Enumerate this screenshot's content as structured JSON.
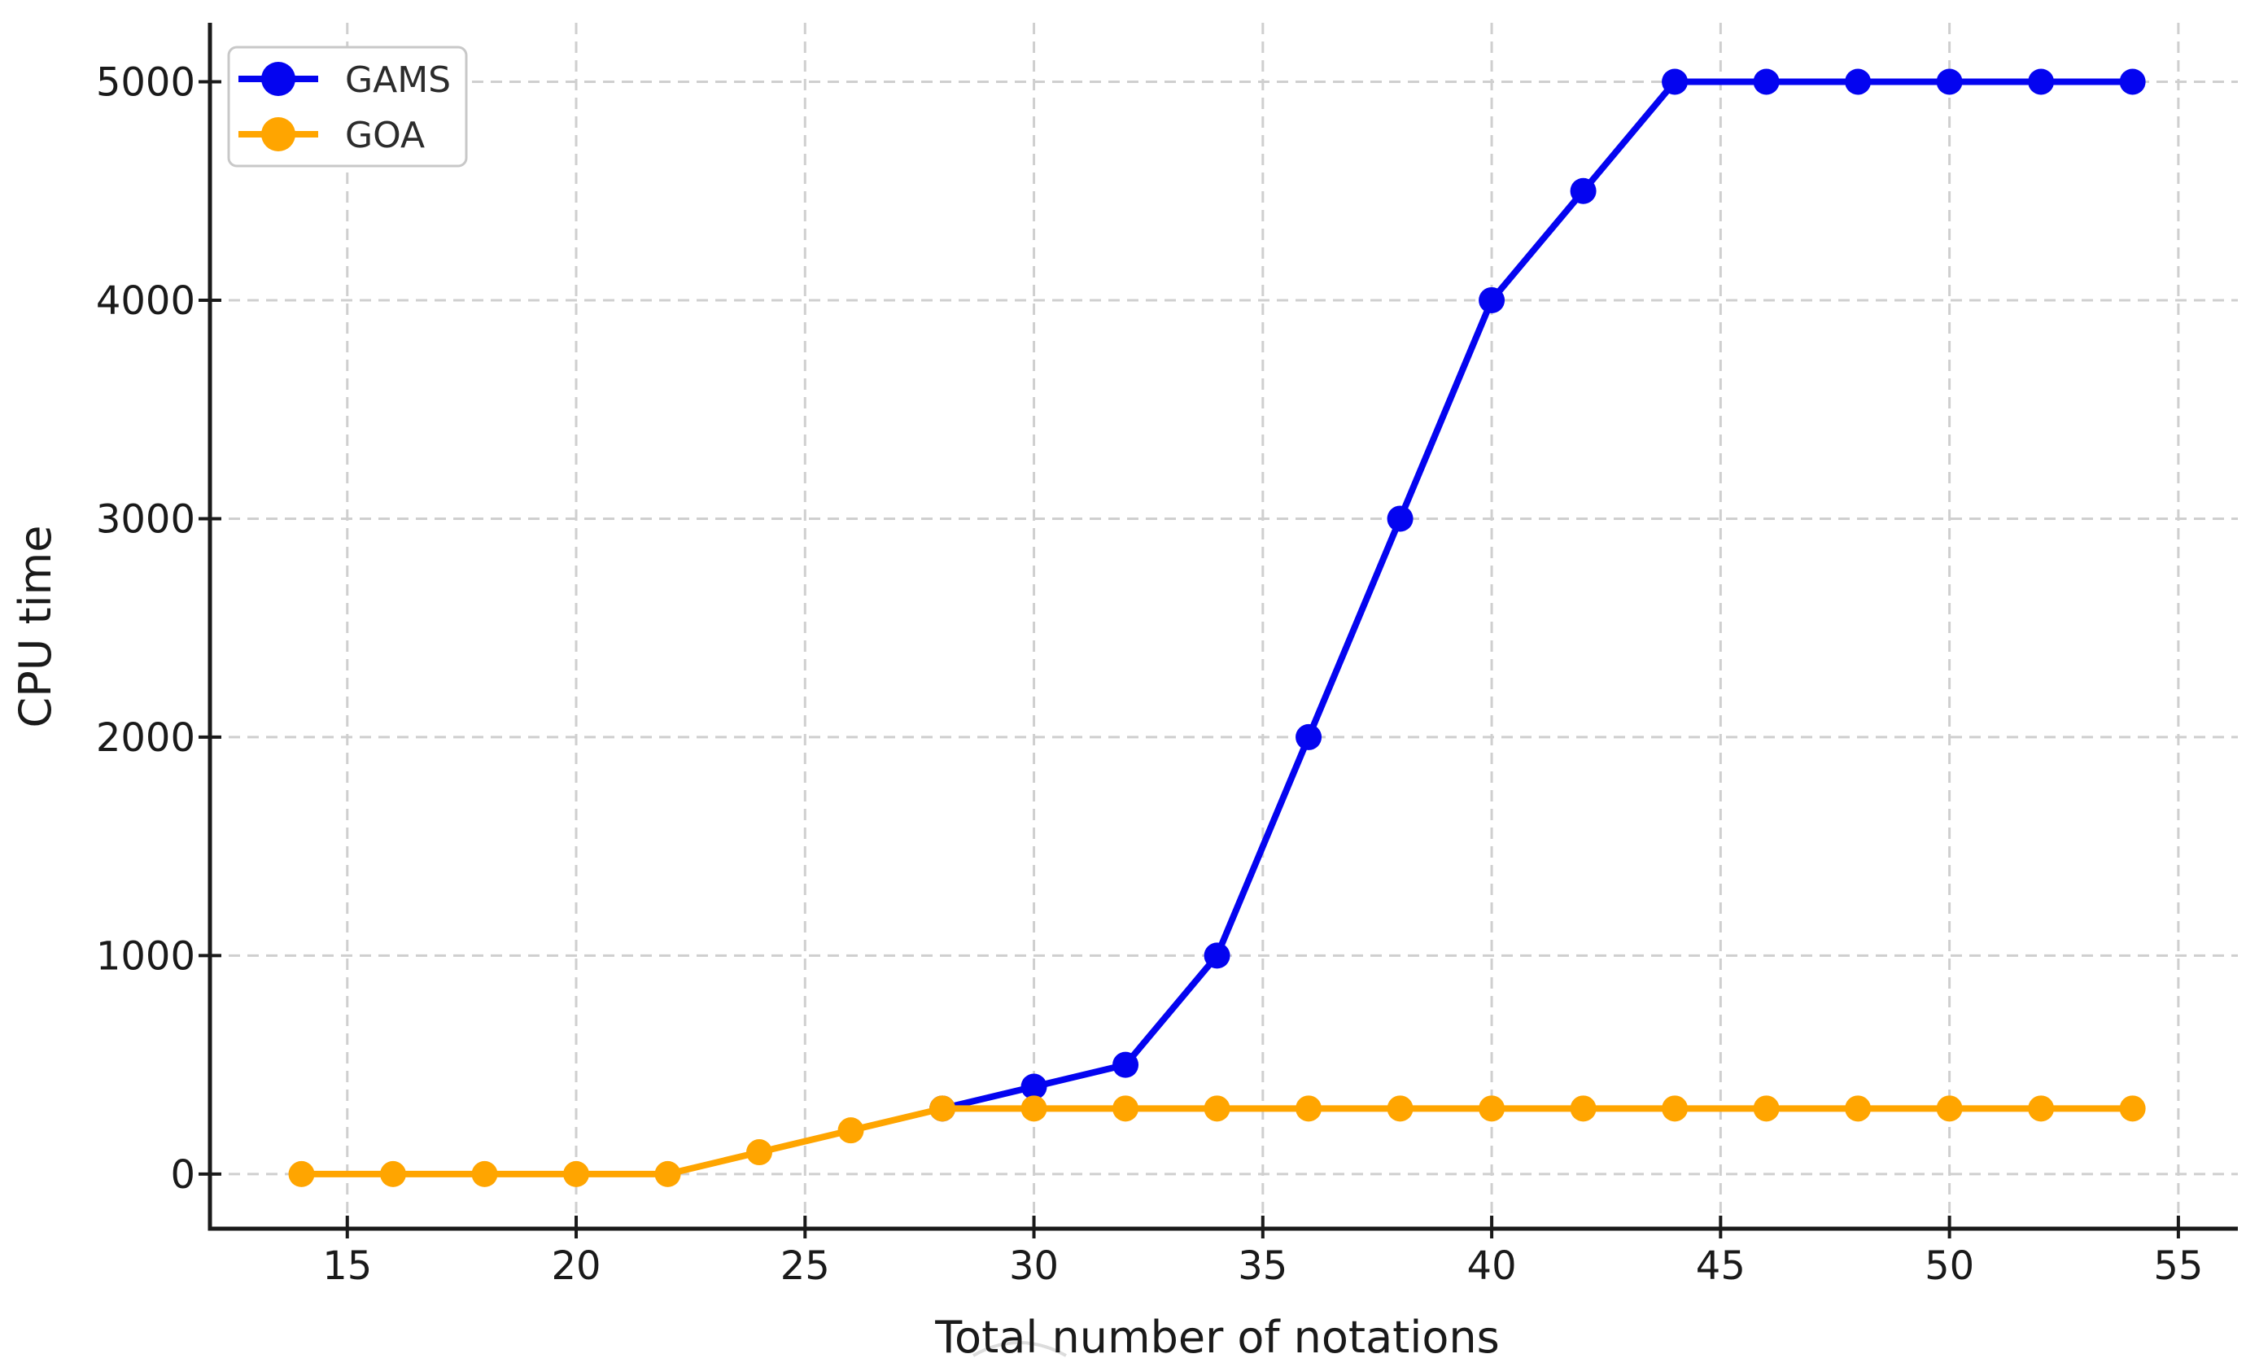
{
  "figure": {
    "background": "#ffffff"
  },
  "chart_data": {
    "type": "line",
    "title": "",
    "xlabel": "Total number of notations",
    "ylabel": "CPU time",
    "xlim": [
      12.0,
      56.3
    ],
    "ylim": [
      -250,
      5270
    ],
    "x_ticks": [
      15,
      20,
      25,
      30,
      35,
      40,
      45,
      50,
      55
    ],
    "y_ticks": [
      0,
      1000,
      2000,
      3000,
      4000,
      5000
    ],
    "grid": true,
    "grid_color": "#cfcfcf",
    "grid_style": "dashed",
    "axis_color": "#1a1a1a",
    "tick_label_color": "#1a1a1a",
    "legend_position": "upper-left",
    "series": [
      {
        "name": "GAMS",
        "color": "#0404f0",
        "x": [
          28,
          30,
          32,
          34,
          36,
          38,
          40,
          42,
          44,
          46,
          48,
          50,
          52,
          54
        ],
        "y": [
          300,
          400,
          500,
          1000,
          2000,
          3000,
          4000,
          4500,
          5000,
          5000,
          5000,
          5000,
          5000,
          5000
        ]
      },
      {
        "name": "GOA",
        "color": "#ffa500",
        "x": [
          14,
          16,
          18,
          20,
          22,
          24,
          26,
          28,
          30,
          32,
          34,
          36,
          38,
          40,
          42,
          44,
          46,
          48,
          50,
          52,
          54
        ],
        "y": [
          0,
          0,
          0,
          0,
          0,
          100,
          200,
          300,
          300,
          300,
          300,
          300,
          300,
          300,
          300,
          300,
          300,
          300,
          300,
          300,
          300
        ]
      }
    ]
  }
}
